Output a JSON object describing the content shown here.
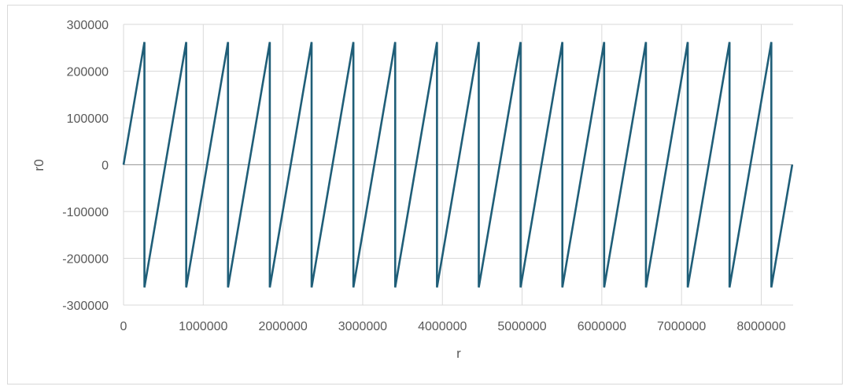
{
  "chart_data": {
    "type": "line",
    "title": "",
    "xlabel": "r",
    "ylabel": "r0",
    "xlim": [
      0,
      8400000
    ],
    "ylim": [
      -300000,
      300000
    ],
    "x_ticks": [
      0,
      1000000,
      2000000,
      3000000,
      4000000,
      5000000,
      6000000,
      7000000,
      8000000
    ],
    "x_tick_labels": [
      "0",
      "1000000",
      "2000000",
      "3000000",
      "4000000",
      "5000000",
      "6000000",
      "7000000",
      "8000000"
    ],
    "y_ticks": [
      300000,
      200000,
      100000,
      0,
      -100000,
      -200000,
      -300000
    ],
    "y_tick_labels": [
      "300000",
      "200000",
      "100000",
      "0",
      "-100000",
      "-200000",
      "-300000"
    ],
    "grid": true,
    "legend": "none",
    "series": [
      {
        "color": "#1f5e78",
        "x": [
          0,
          262144,
          262144,
          786432,
          786432,
          1310720,
          1310720,
          1835008,
          1835008,
          2359296,
          2359296,
          2883584,
          2883584,
          3407872,
          3407872,
          3932160,
          3932160,
          4456448,
          4456448,
          4980736,
          4980736,
          5505024,
          5505024,
          6029312,
          6029312,
          6553600,
          6553600,
          7077888,
          7077888,
          7602176,
          7602176,
          8126464,
          8126464,
          8388608
        ],
        "y": [
          0,
          262144,
          -262144,
          262144,
          -262144,
          262144,
          -262144,
          262144,
          -262144,
          262144,
          -262144,
          262144,
          -262144,
          262144,
          -262144,
          262144,
          -262144,
          262144,
          -262144,
          262144,
          -262144,
          262144,
          -262144,
          262144,
          -262144,
          262144,
          -262144,
          262144,
          -262144,
          262144,
          -262144,
          262144,
          -262144,
          0
        ]
      }
    ]
  }
}
